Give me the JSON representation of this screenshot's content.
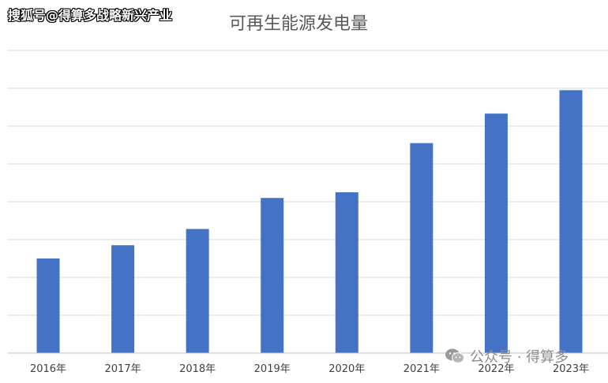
{
  "watermarks": {
    "top": "搜狐号@得算多战略新兴产业",
    "bottom": "公众号 · 得算多"
  },
  "colors": {
    "bar": "#4472c4",
    "grid": "#d9d9d9",
    "axis": "#bfbfbf",
    "title": "#595959",
    "tick": "#404040"
  },
  "icons": {
    "bottom_watermark": "wechat-icon"
  },
  "chart_data": {
    "type": "bar",
    "title": "可再生能源发电量",
    "xlabel": "",
    "ylabel": "",
    "categories": [
      "2016年",
      "2017年",
      "2018年",
      "2019年",
      "2020年",
      "2021年",
      "2022年",
      "2023年"
    ],
    "values": [
      2.5,
      2.85,
      3.28,
      4.1,
      4.25,
      5.55,
      6.33,
      6.95
    ],
    "ylim": [
      0,
      8
    ],
    "grid": true,
    "y_tick_labels_visible": false,
    "legend": "none"
  }
}
